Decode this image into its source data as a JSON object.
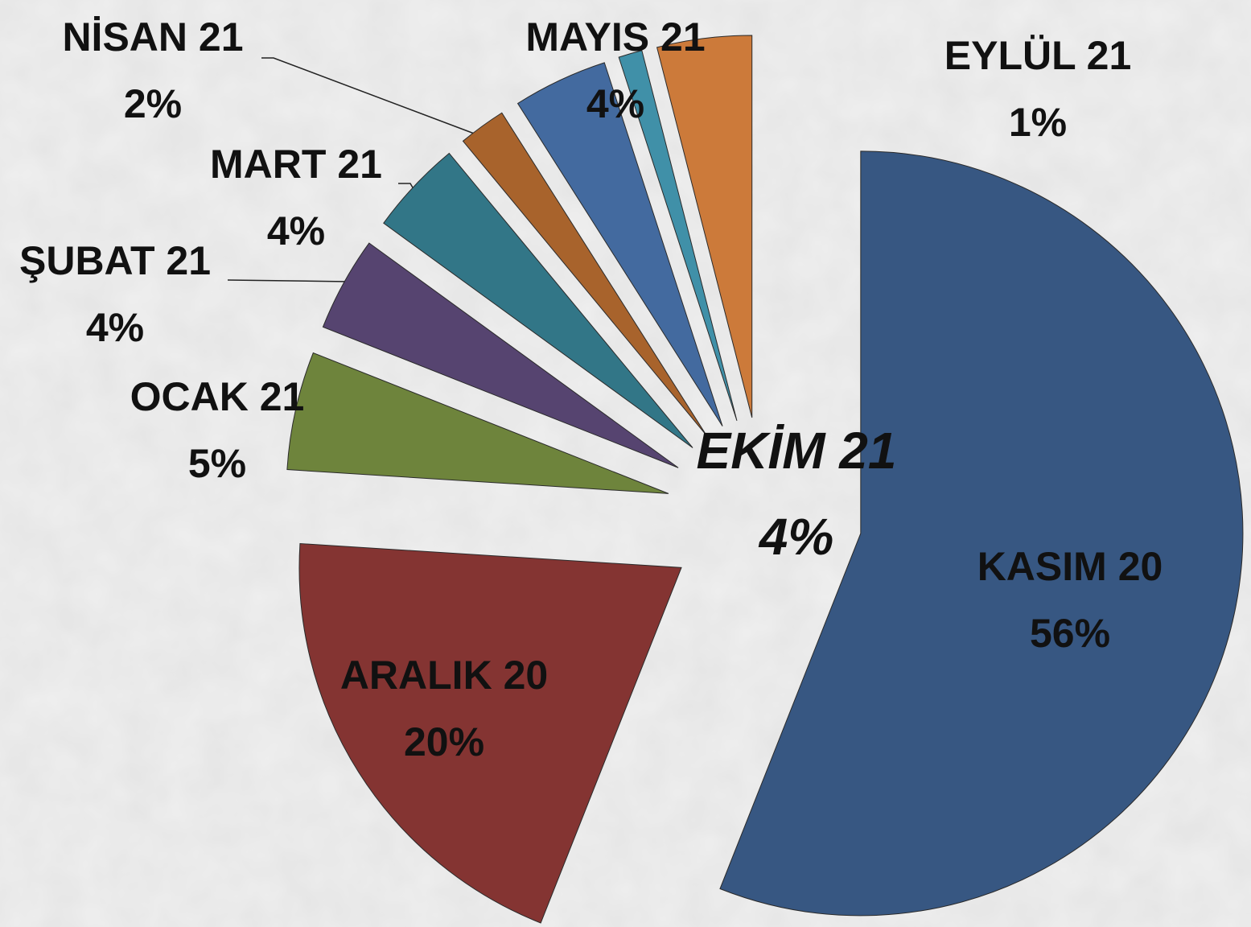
{
  "chart_data": {
    "type": "pie",
    "categories": [
      "KASIM 20",
      "ARALIK 20",
      "OCAK 21",
      "ŞUBAT 21",
      "MART 21",
      "NİSAN 21",
      "MAYIS 21",
      "EYLÜL 21",
      "EKİM 21"
    ],
    "values": [
      56,
      20,
      5,
      4,
      4,
      2,
      4,
      1,
      4
    ],
    "value_labels": [
      "56%",
      "20%",
      "5%",
      "4%",
      "4%",
      "2%",
      "4%",
      "1%",
      "4%"
    ],
    "colors": [
      "#375782",
      "#843432",
      "#6e843c",
      "#564470",
      "#327687",
      "#a8632c",
      "#436a9f",
      "#4090a8",
      "#cc7a3a"
    ],
    "highlight_color": "#ee1111"
  }
}
